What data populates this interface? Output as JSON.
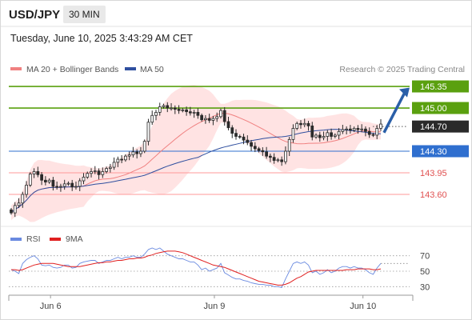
{
  "header": {
    "symbol": "USD/JPY",
    "timeframe": "30 MIN",
    "datetime": "Tuesday, June 10, 2025 3:43:29 AM CET"
  },
  "colors": {
    "candle": "#2a2a2a",
    "up_candle_fill": "#ffffff",
    "bollinger": "#ffcccc",
    "ma20": "#f08080",
    "ma50": "#2f4f9f",
    "resistance": "#5aa00f",
    "support": "#ff9999",
    "pivot": "#2f6fcf",
    "arrow": "#2a5fa8",
    "rsi": "#6a8ae0",
    "rsi_ma": "#e02020"
  },
  "chart_data": [
    {
      "type": "candlestick",
      "title": "",
      "legend": [
        {
          "name": "MA 20 + Bollinger Bands",
          "color": "#f08080"
        },
        {
          "name": "MA 50",
          "color": "#2f4f9f"
        }
      ],
      "legend_position": "top-left",
      "credit": "Research © 2025 Trading Central",
      "x_ticks": [
        "Jun 6",
        "Jun 9",
        "Jun 10"
      ],
      "y_range": [
        143.12,
        145.48
      ],
      "levels": [
        {
          "value": 145.35,
          "label": "145.35",
          "kind": "resistance",
          "style": "box"
        },
        {
          "value": 145.0,
          "label": "145.00",
          "kind": "resistance",
          "style": "box"
        },
        {
          "value": 144.7,
          "label": "144.70",
          "kind": "pivot",
          "style": "dotted"
        },
        {
          "value": 144.3,
          "label": "144.30",
          "kind": "pivot_line",
          "style": "box"
        },
        {
          "value": 143.95,
          "label": "143.95",
          "kind": "support",
          "style": "text"
        },
        {
          "value": 143.6,
          "label": "143.60",
          "kind": "support",
          "style": "text"
        }
      ],
      "arrow": {
        "from": 144.6,
        "to": 145.33,
        "direction": "up"
      },
      "close": [
        143.3,
        143.42,
        143.46,
        143.6,
        143.75,
        143.93,
        143.97,
        143.92,
        143.83,
        143.8,
        143.83,
        143.73,
        143.72,
        143.73,
        143.77,
        143.78,
        143.72,
        143.73,
        143.82,
        143.88,
        143.94,
        143.97,
        143.98,
        143.92,
        143.97,
        144.02,
        144.04,
        144.12,
        144.17,
        144.16,
        144.22,
        144.24,
        144.29,
        144.26,
        144.3,
        144.46,
        144.77,
        144.88,
        144.93,
        145.02,
        145.04,
        145.0,
        145.0,
        144.98,
        144.96,
        144.97,
        144.94,
        144.92,
        144.93,
        144.88,
        144.81,
        144.83,
        144.8,
        144.83,
        144.86,
        144.96,
        144.78,
        144.68,
        144.59,
        144.54,
        144.53,
        144.48,
        144.44,
        144.38,
        144.34,
        144.31,
        144.29,
        144.22,
        144.2,
        144.15,
        144.16,
        144.13,
        144.3,
        144.49,
        144.67,
        144.75,
        144.73,
        144.75,
        144.71,
        144.53,
        144.56,
        144.52,
        144.54,
        144.6,
        144.54,
        144.56,
        144.62,
        144.65,
        144.66,
        144.64,
        144.67,
        144.65,
        144.66,
        144.62,
        144.57,
        144.56,
        144.67,
        144.74
      ]
    },
    {
      "type": "line",
      "title": "",
      "legend": [
        {
          "name": "RSI",
          "color": "#6a8ae0"
        },
        {
          "name": "9MA",
          "color": "#e02020"
        }
      ],
      "y_range": [
        20,
        80
      ],
      "y_ticks": [
        70,
        50,
        30
      ],
      "series": [
        {
          "name": "RSI",
          "values": [
            52,
            50,
            47,
            60,
            65,
            68,
            70,
            66,
            58,
            57,
            58,
            55,
            54,
            55,
            58,
            58,
            54,
            55,
            60,
            62,
            63,
            64,
            64,
            60,
            62,
            64,
            64,
            66,
            68,
            66,
            68,
            68,
            70,
            68,
            68,
            72,
            78,
            80,
            78,
            80,
            76,
            72,
            70,
            68,
            66,
            66,
            64,
            62,
            62,
            58,
            52,
            54,
            50,
            52,
            54,
            60,
            48,
            45,
            42,
            40,
            40,
            38,
            37,
            35,
            34,
            33,
            33,
            32,
            32,
            30,
            30,
            29,
            40,
            50,
            60,
            62,
            60,
            62,
            58,
            48,
            50,
            46,
            48,
            52,
            48,
            50,
            54,
            56,
            56,
            54,
            56,
            54,
            54,
            52,
            48,
            46,
            54,
            60
          ]
        },
        {
          "name": "9MA",
          "values": [
            52,
            52,
            51,
            52,
            54,
            56,
            58,
            59,
            60,
            60,
            60,
            60,
            59,
            58,
            57,
            56,
            56,
            56,
            56,
            57,
            58,
            59,
            60,
            61,
            61,
            62,
            62,
            63,
            64,
            64,
            65,
            66,
            66,
            67,
            67,
            68,
            70,
            71,
            73,
            74,
            75,
            76,
            76,
            76,
            75,
            74,
            72,
            70,
            68,
            66,
            64,
            62,
            60,
            58,
            57,
            56,
            55,
            53,
            51,
            49,
            47,
            45,
            43,
            41,
            39,
            37,
            36,
            35,
            34,
            33,
            32,
            32,
            33,
            35,
            38,
            41,
            43,
            46,
            49,
            50,
            51,
            51,
            51,
            51,
            51,
            51,
            51,
            51,
            52,
            52,
            52,
            53,
            53,
            53,
            53,
            52,
            52,
            53
          ]
        }
      ]
    }
  ]
}
